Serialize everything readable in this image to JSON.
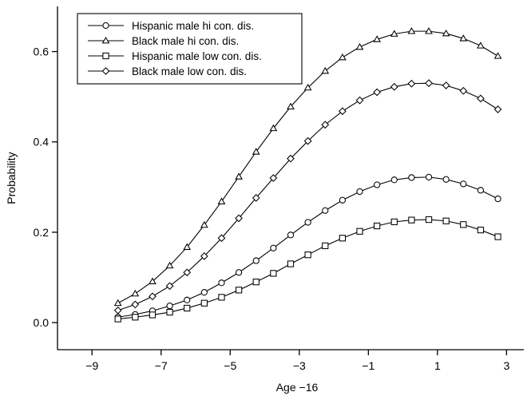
{
  "chart_data": {
    "type": "line",
    "title": "",
    "xlabel": "Age −16",
    "ylabel": "Probability",
    "xlim": [
      -10,
      3.5
    ],
    "ylim": [
      -0.06,
      0.7
    ],
    "x_ticks": [
      -9,
      -7,
      -5,
      -3,
      -1,
      1,
      3
    ],
    "x_tick_labels": [
      "−9",
      "−7",
      "−5",
      "−3",
      "−1",
      "1",
      "3"
    ],
    "y_ticks": [
      0.0,
      0.2,
      0.4,
      0.6
    ],
    "y_tick_labels": [
      "0.0",
      "0.2",
      "0.4",
      "0.6"
    ],
    "grid": false,
    "legend_position": "top-left",
    "x": [
      -8.25,
      -7.75,
      -7.25,
      -6.75,
      -6.25,
      -5.75,
      -5.25,
      -4.75,
      -4.25,
      -3.75,
      -3.25,
      -2.75,
      -2.25,
      -1.75,
      -1.25,
      -0.75,
      -0.25,
      0.25,
      0.75,
      1.25,
      1.75,
      2.25,
      2.75
    ],
    "series": [
      {
        "name": "Hispanic male hi con. dis.",
        "marker": "circle",
        "values": [
          0.012,
          0.018,
          0.026,
          0.037,
          0.05,
          0.067,
          0.088,
          0.111,
          0.137,
          0.165,
          0.194,
          0.222,
          0.248,
          0.271,
          0.29,
          0.305,
          0.316,
          0.321,
          0.322,
          0.317,
          0.307,
          0.293,
          0.274
        ]
      },
      {
        "name": "Black male hi con. dis.",
        "marker": "triangle",
        "values": [
          0.043,
          0.064,
          0.091,
          0.126,
          0.167,
          0.216,
          0.268,
          0.323,
          0.378,
          0.43,
          0.478,
          0.52,
          0.557,
          0.587,
          0.61,
          0.627,
          0.639,
          0.645,
          0.645,
          0.64,
          0.629,
          0.613,
          0.59
        ]
      },
      {
        "name": "Hispanic male low con. dis.",
        "marker": "square",
        "values": [
          0.008,
          0.012,
          0.017,
          0.023,
          0.032,
          0.043,
          0.056,
          0.072,
          0.09,
          0.109,
          0.13,
          0.15,
          0.17,
          0.187,
          0.202,
          0.214,
          0.223,
          0.227,
          0.228,
          0.225,
          0.217,
          0.205,
          0.19
        ]
      },
      {
        "name": "Black male low con. dis.",
        "marker": "diamond",
        "values": [
          0.027,
          0.04,
          0.058,
          0.081,
          0.111,
          0.147,
          0.187,
          0.231,
          0.276,
          0.32,
          0.363,
          0.402,
          0.438,
          0.468,
          0.492,
          0.51,
          0.522,
          0.529,
          0.53,
          0.525,
          0.513,
          0.496,
          0.472
        ]
      }
    ]
  }
}
